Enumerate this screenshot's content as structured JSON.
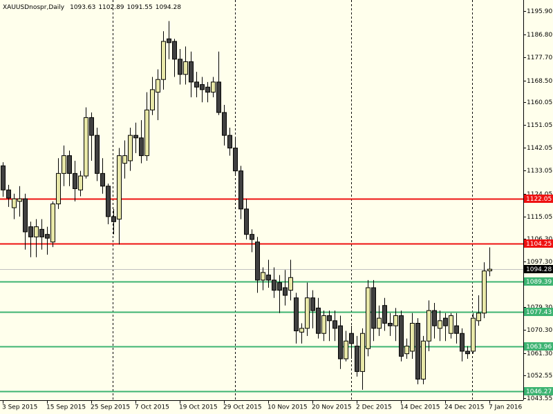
{
  "chart_data": {
    "type": "candlestick",
    "title": "XAUUSDnospr,Daily",
    "categories": [
      "3 Sep 2015",
      null,
      null,
      null,
      null,
      null,
      null,
      null,
      "15 Sep 2015",
      null,
      null,
      null,
      null,
      null,
      null,
      null,
      "25 Sep 2015",
      null,
      null,
      null,
      null,
      null,
      null,
      null,
      "7 Oct 2015",
      null,
      null,
      null,
      null,
      null,
      null,
      null,
      "19 Oct 2015",
      null,
      null,
      null,
      null,
      null,
      null,
      null,
      "29 Oct 2015",
      null,
      null,
      null,
      null,
      null,
      null,
      null,
      "10 Nov 2015",
      null,
      null,
      null,
      null,
      null,
      null,
      null,
      "20 Nov 2015",
      null,
      null,
      null,
      null,
      null,
      null,
      null,
      "2 Dec 2015",
      null,
      null,
      null,
      null,
      null,
      null,
      null,
      "14 Dec 2015",
      null,
      null,
      null,
      null,
      null,
      null,
      null,
      "24 Dec 2015",
      null,
      null,
      null,
      null,
      null,
      null,
      null,
      "7 Jan 2016"
    ],
    "open": [
      1135,
      1125.5,
      1118.5,
      1121,
      1122,
      1111,
      1107,
      1110,
      1108,
      1105,
      1120,
      1132,
      1139,
      1132,
      1125.5,
      1131,
      1154,
      1147,
      1132,
      1127,
      1115,
      1114,
      1136,
      1137,
      1147,
      1146,
      1139,
      1157,
      1164,
      1169,
      1185,
      1184,
      1177,
      1171,
      1176,
      1168,
      1167,
      1166,
      1164,
      1168,
      1156,
      1147,
      1142,
      1133,
      1118,
      1108,
      1105,
      1090,
      1092,
      1090,
      1089,
      1087,
      1086,
      1083,
      1069.5,
      1071,
      1083,
      1079,
      1069,
      1076,
      1074,
      1072,
      1059,
      1069,
      1064,
      1054,
      1063,
      1087,
      1071,
      1080,
      1073,
      1072,
      1076,
      1061,
      1062,
      1073,
      1051,
      1066,
      1078,
      1071,
      1075,
      1069,
      1072,
      1069,
      1062,
      1062,
      1074,
      1077,
      1093.63
    ],
    "high": [
      1136.4,
      1127.5,
      1124,
      1127,
      1124,
      1113,
      1114,
      1114,
      1111,
      1121,
      1138,
      1143,
      1141,
      1137,
      1133,
      1158,
      1156,
      1150,
      1138,
      1128,
      1118,
      1142,
      1145,
      1150,
      1152,
      1153,
      1164,
      1170,
      1173,
      1188,
      1192,
      1185,
      1181,
      1182,
      1180,
      1172,
      1170,
      1168,
      1170,
      1180,
      1159,
      1150,
      1146,
      1135,
      1122,
      1110,
      1107,
      1095,
      1098,
      1095,
      1092,
      1094,
      1098,
      1085,
      1073,
      1089,
      1086,
      1083,
      1078,
      1078,
      1078,
      1076,
      1070,
      1072,
      1068,
      1071,
      1090,
      1090,
      1080,
      1083,
      1077,
      1079,
      1078,
      1067,
      1077,
      1075,
      1068,
      1082,
      1081,
      1078,
      1077,
      1077,
      1077,
      1071,
      1064,
      1077,
      1084,
      1097,
      1102.89
    ],
    "low": [
      1122.8,
      1118.8,
      1114,
      1115,
      1102,
      1099,
      1099,
      1102,
      1100,
      1103,
      1118,
      1127,
      1127,
      1121,
      1123,
      1130,
      1137,
      1129,
      1124,
      1112,
      1108,
      1104,
      1130,
      1133,
      1140,
      1136,
      1137,
      1155,
      1153,
      1165,
      1177,
      1170,
      1167,
      1167,
      1162,
      1162,
      1160,
      1160,
      1162,
      1155,
      1143,
      1139,
      1131,
      1114,
      1106,
      1101,
      1085,
      1086,
      1087,
      1083,
      1077,
      1080,
      1082,
      1065,
      1065,
      1068,
      1071,
      1067,
      1066,
      1066,
      1066,
      1055,
      1058,
      1059,
      1052,
      1046.8,
      1060,
      1066,
      1068,
      1070,
      1068,
      1066,
      1058,
      1059,
      1059,
      1049,
      1049,
      1062,
      1067,
      1066,
      1066,
      1067,
      1065,
      1058,
      1059,
      1061,
      1072,
      1075,
      1091.55
    ],
    "close": [
      1125.5,
      1122.3,
      1122,
      1122,
      1109,
      1107,
      1111,
      1107,
      1106.5,
      1120,
      1132,
      1139,
      1132,
      1126,
      1131,
      1154,
      1147,
      1132,
      1127,
      1115,
      1113,
      1139,
      1139,
      1147,
      1146,
      1139,
      1157,
      1165,
      1169,
      1184,
      1183.5,
      1177,
      1171,
      1176,
      1168,
      1166,
      1165,
      1164,
      1168,
      1156,
      1147,
      1142,
      1133,
      1118,
      1108,
      1106,
      1090,
      1093,
      1090,
      1086,
      1086,
      1084,
      1091,
      1070,
      1071,
      1083,
      1078,
      1069,
      1076,
      1074,
      1071,
      1059,
      1066,
      1065,
      1054,
      1069,
      1087,
      1071,
      1075,
      1073,
      1072,
      1076,
      1060,
      1064,
      1073,
      1051,
      1066,
      1078,
      1072,
      1074,
      1072,
      1076,
      1069,
      1062,
      1061,
      1075,
      1077,
      1093.6,
      1094.28
    ],
    "up_color": "#e8e8a8",
    "down_color": "#404040",
    "ylim": [
      1042.7,
      1200.3
    ],
    "yticks": [
      {
        "value": 1195.9,
        "label": "1195.90"
      },
      {
        "value": 1186.8,
        "label": "1186.80"
      },
      {
        "value": 1177.7,
        "label": "1177.70"
      },
      {
        "value": 1168.5,
        "label": "1168.50"
      },
      1160.05,
      1151.05,
      1142.05,
      1133.05,
      1124.05,
      1115.05,
      {
        "value": 1106.3,
        "label": "1106.30"
      },
      {
        "value": 1097.3,
        "label": "1097.30"
      },
      {
        "value": 1079.3,
        "label": "1079.30"
      },
      {
        "value": 1070.3,
        "label": "1070.30"
      },
      {
        "value": 1061.3,
        "label": "1061.30"
      },
      1052.55,
      1043.55
    ],
    "hlines": [
      {
        "value": 1122.05,
        "color": "#ee1111"
      },
      {
        "value": 1104.25,
        "color": "#ee1111"
      },
      {
        "value": 1089.39,
        "color": "#3cb371"
      },
      {
        "value": 1077.43,
        "color": "#3cb371"
      },
      {
        "value": 1063.96,
        "color": "#3cb371"
      },
      {
        "value": 1046.27,
        "color": "#3cb371"
      }
    ]
  }
}
